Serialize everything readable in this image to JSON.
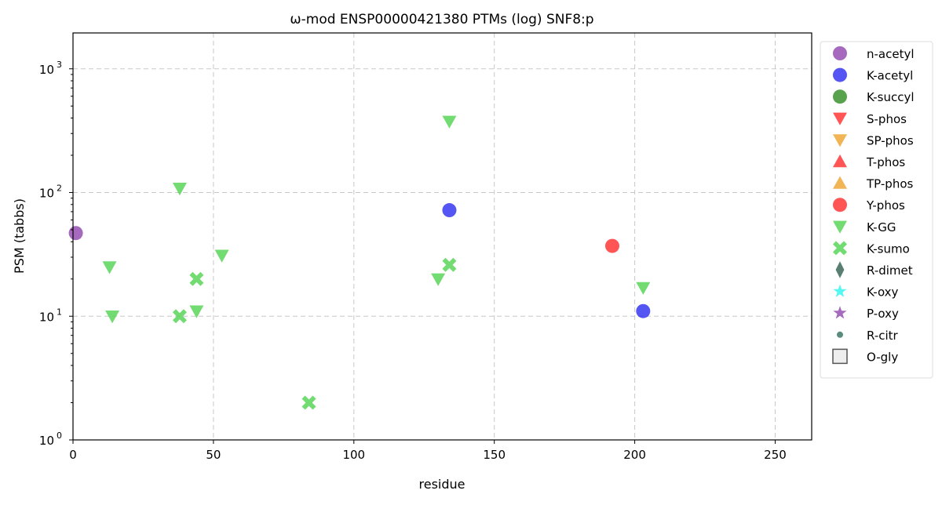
{
  "chart_data": {
    "type": "scatter",
    "title": "ω-mod ENSP00000421380 PTMs (log) SNF8:p",
    "xlabel": "residue",
    "ylabel": "PSM (tabbs)",
    "xlim": [
      0,
      263
    ],
    "ylim": [
      1,
      1950
    ],
    "yscale": "log",
    "grid": true,
    "legend_placement": "outside-right",
    "xticks": [
      0,
      50,
      100,
      150,
      200,
      250
    ],
    "yticks": [
      {
        "value": 1,
        "base": "10",
        "exp": "0"
      },
      {
        "value": 10,
        "base": "10",
        "exp": "1"
      },
      {
        "value": 100,
        "base": "10",
        "exp": "2"
      },
      {
        "value": 1000,
        "base": "10",
        "exp": "3"
      }
    ],
    "series": [
      {
        "name": "n-acetyl",
        "marker": "circle",
        "color": "#8e44ad",
        "points": [
          [
            1,
            47
          ]
        ]
      },
      {
        "name": "K-acetyl",
        "marker": "circle",
        "color": "#2a2af0",
        "points": [
          [
            134,
            72
          ],
          [
            203,
            11
          ]
        ]
      },
      {
        "name": "K-succyl",
        "marker": "circle",
        "color": "#2e8b22",
        "points": []
      },
      {
        "name": "S-phos",
        "marker": "tri-down",
        "color": "#ff2a2a",
        "points": []
      },
      {
        "name": "SP-phos",
        "marker": "tri-down",
        "color": "#eda22a",
        "points": []
      },
      {
        "name": "T-phos",
        "marker": "tri-up",
        "color": "#ff2a2a",
        "points": []
      },
      {
        "name": "TP-phos",
        "marker": "tri-up",
        "color": "#eda22a",
        "points": []
      },
      {
        "name": "Y-phos",
        "marker": "circle",
        "color": "#ff2a2a",
        "points": [
          [
            192,
            37
          ]
        ]
      },
      {
        "name": "K-GG",
        "marker": "tri-down",
        "color": "#4fd24f",
        "points": [
          [
            38,
            108
          ],
          [
            134,
            376
          ],
          [
            13,
            25
          ],
          [
            14,
            10
          ],
          [
            44,
            11
          ],
          [
            53,
            31
          ],
          [
            130,
            20
          ],
          [
            203,
            17
          ]
        ]
      },
      {
        "name": "K-sumo",
        "marker": "x",
        "color": "#4fd24f",
        "points": [
          [
            38,
            10
          ],
          [
            44,
            20
          ],
          [
            84,
            2
          ],
          [
            134,
            26
          ]
        ]
      },
      {
        "name": "R-dimet",
        "marker": "diamond",
        "color": "#2f5f4f",
        "points": []
      },
      {
        "name": "K-oxy",
        "marker": "star",
        "color": "#2af5f0",
        "points": []
      },
      {
        "name": "P-oxy",
        "marker": "star",
        "color": "#8e44ad",
        "points": []
      },
      {
        "name": "R-citr",
        "marker": "dot",
        "color": "#2f6f5f",
        "points": []
      },
      {
        "name": "O-gly",
        "marker": "square",
        "color": "#eeeeee",
        "points": []
      }
    ]
  }
}
